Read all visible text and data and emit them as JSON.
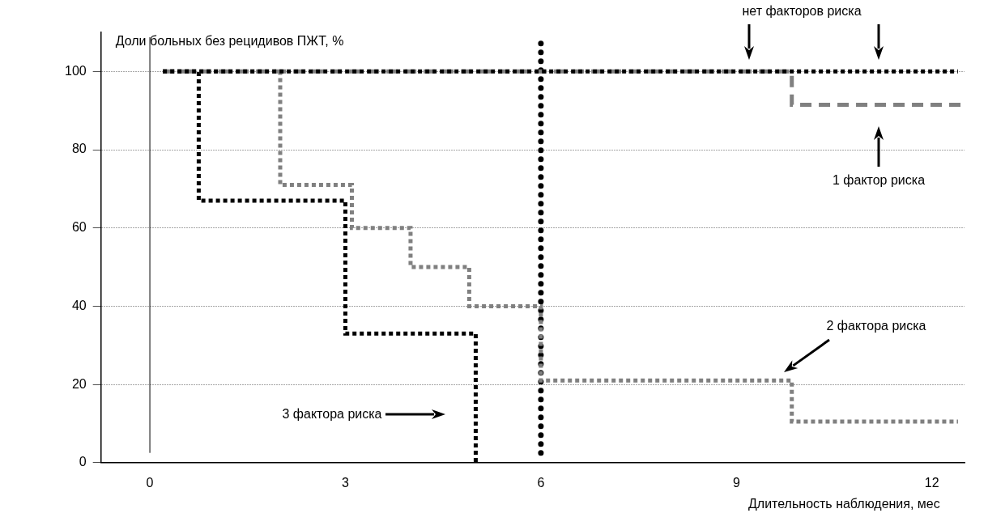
{
  "chart_data": {
    "type": "step",
    "xlabel": "Длительность наблюдения, мес",
    "ylabel": "Доли больных без рецидивов ПЖТ, %",
    "xlim": [
      -0.75,
      12.5
    ],
    "xticks": [
      0,
      3,
      6,
      9,
      12
    ],
    "ylim": [
      0,
      110
    ],
    "yticks": [
      0,
      20,
      40,
      60,
      80,
      100
    ],
    "grid": "y",
    "legend": false,
    "marker": "none",
    "series": [
      {
        "color": "#000000",
        "line_style": "dotted",
        "x": [
          0.2,
          12.4
        ],
        "values": [
          100,
          100
        ]
      },
      {
        "color": "#808080",
        "line_style": "dashed",
        "x": [
          0.2,
          9.85,
          12.5
        ],
        "values": [
          100,
          91.5,
          91.5
        ]
      },
      {
        "color": "#808080",
        "line_style": "dotted",
        "x": [
          0.2,
          2,
          3.1,
          4,
          4.9,
          6,
          9.85,
          12.4
        ],
        "values": [
          100,
          71,
          60,
          50,
          40,
          21,
          10.5,
          10.5
        ]
      },
      {
        "color": "#000000",
        "line_style": "dotted",
        "x": [
          0.2,
          0.75,
          3,
          5
        ],
        "values": [
          100,
          67,
          33,
          0
        ]
      }
    ],
    "ref_lines": [
      {
        "axis": "x",
        "value": 0,
        "color": "#000000",
        "line_style": "solid"
      },
      {
        "axis": "x",
        "value": 6,
        "color": "#000000",
        "line_style": "dotted"
      }
    ],
    "annotations": [
      "нет факторов риска",
      "1 фактор риска",
      "2 фактора риска",
      "3 фактора риска"
    ]
  }
}
